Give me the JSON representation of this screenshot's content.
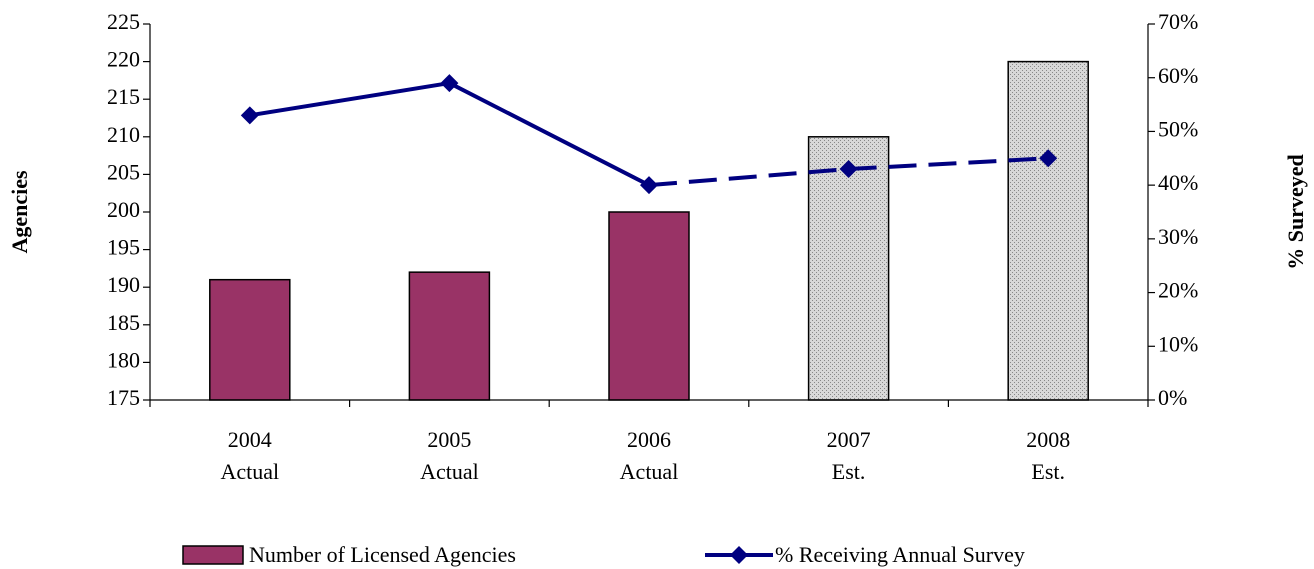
{
  "chart_data": {
    "type": "bar",
    "categories": [
      "2004\nActual",
      "2005\nActual",
      "2006\nActual",
      "2007\nEst.",
      "2008\nEst."
    ],
    "estimated": [
      false,
      false,
      false,
      true,
      true
    ],
    "estimate_color": "#c8c8c8",
    "series": [
      {
        "name": "Number of Licensed Agencies",
        "type": "bar",
        "color": "#993366",
        "values": [
          191,
          192,
          200,
          210,
          220
        ]
      },
      {
        "name": "% Receiving Annual Survey",
        "type": "line",
        "axis": "y2",
        "color": "#000080",
        "values": [
          53,
          59,
          40,
          43,
          45
        ]
      }
    ],
    "ylabel": "Agencies",
    "y2label": "% Surveyed",
    "ylim": [
      175,
      225
    ],
    "yticks": [
      175,
      180,
      185,
      190,
      195,
      200,
      205,
      210,
      215,
      220,
      225
    ],
    "y2lim": [
      0,
      70
    ],
    "y2ticks": [
      {
        "value": 0,
        "label": "0%"
      },
      {
        "value": 10,
        "label": "10%"
      },
      {
        "value": 20,
        "label": "20%"
      },
      {
        "value": 30,
        "label": "30%"
      },
      {
        "value": 40,
        "label": "40%"
      },
      {
        "value": 50,
        "label": "50%"
      },
      {
        "value": 60,
        "label": "60%"
      },
      {
        "value": 70,
        "label": "70%"
      }
    ],
    "legend": "bottom"
  }
}
